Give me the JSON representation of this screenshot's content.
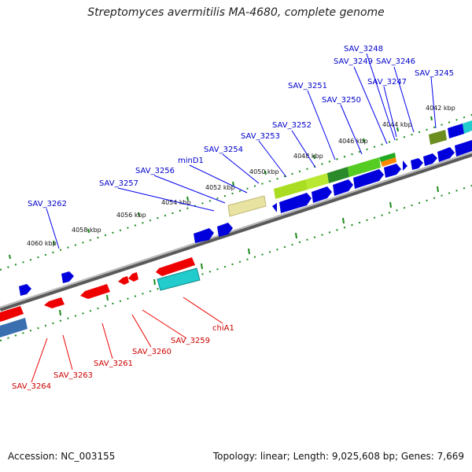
{
  "title": "Streptomyces avermitilis MA-4680, complete genome",
  "footer": {
    "accession": "Accession: NC_003155",
    "summary": "Topology: linear; Length: 9,025,608 bp; Genes: 7,669"
  },
  "scale_labels": [
    "4042 kbp",
    "4044 kbp",
    "4046 kbp",
    "4048 kbp",
    "4050 kbp",
    "4052 kbp",
    "4054 kbp",
    "4056 kbp",
    "4058 kbp",
    "4060 kbp"
  ],
  "forward_gene_labels": [
    "SAV_3248",
    "SAV_3249",
    "SAV_3246",
    "SAV_3245",
    "SAV_3247",
    "SAV_3251",
    "SAV_3250",
    "SAV_3252",
    "SAV_3253",
    "SAV_3254",
    "minD1",
    "SAV_3256",
    "SAV_3257",
    "SAV_3262"
  ],
  "reverse_gene_labels": [
    "chiA1",
    "SAV_3259",
    "SAV_3260",
    "SAV_3261",
    "SAV_3263",
    "SAV_3264"
  ],
  "colors": {
    "backbone": "#888888",
    "forward_label": "#0000cc",
    "reverse_label": "#cc0000",
    "ticks": "#1a8a1a",
    "callout_forward": "#0000ee",
    "callout_reverse": "#ee0000"
  }
}
